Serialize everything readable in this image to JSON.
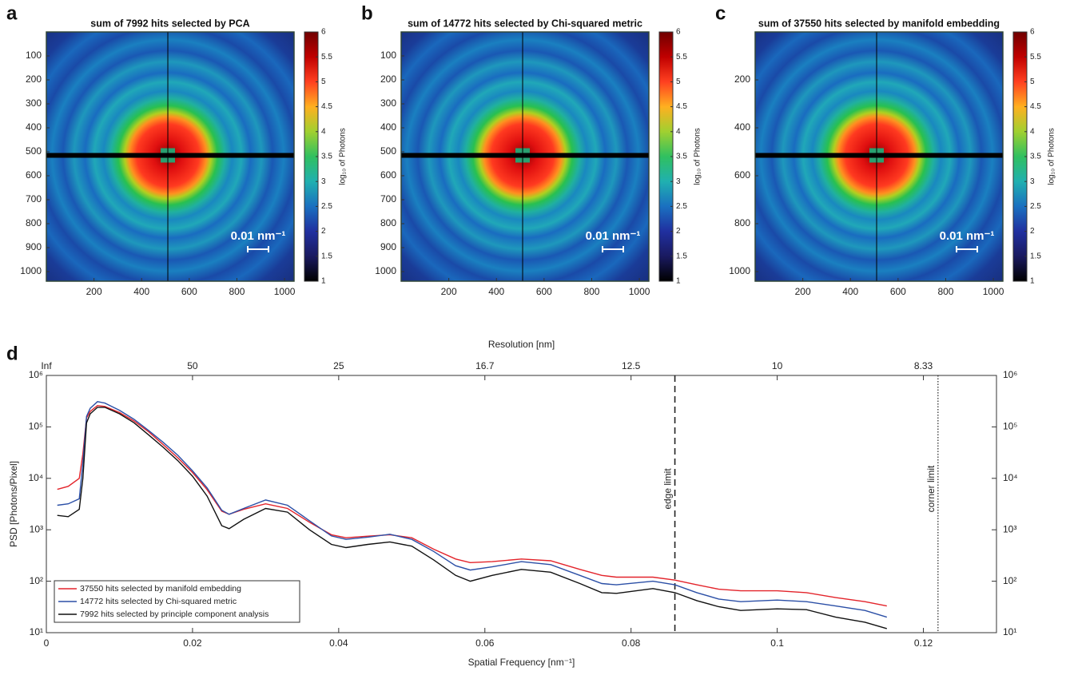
{
  "chart_data": [
    {
      "type": "heatmap",
      "panel": "a",
      "title": "sum of 7992 hits selected by PCA",
      "xlim": [
        0,
        1040
      ],
      "ylim": [
        0,
        1040
      ],
      "xticks": [
        200,
        400,
        600,
        800,
        1000
      ],
      "yticks": [
        100,
        200,
        300,
        400,
        500,
        600,
        700,
        800,
        900,
        1000
      ],
      "colorbar": {
        "label": "log₁₀ of Photons",
        "lim": [
          1,
          6
        ],
        "ticks": [
          1,
          1.5,
          2,
          2.5,
          3,
          3.5,
          4,
          4.5,
          5,
          5.5,
          6
        ]
      },
      "colormap": [
        "#000000",
        "#1a1a60",
        "#2030a0",
        "#1a70c0",
        "#20b0b0",
        "#30c060",
        "#a0d030",
        "#ffb020",
        "#ff4020",
        "#c00000",
        "#700000"
      ],
      "scale_bar_label": "0.01 nm⁻¹"
    },
    {
      "type": "heatmap",
      "panel": "b",
      "title": "sum of 14772 hits selected by Chi-squared metric",
      "xlim": [
        0,
        1040
      ],
      "ylim": [
        0,
        1040
      ],
      "xticks": [
        200,
        400,
        600,
        800,
        1000
      ],
      "yticks": [
        100,
        200,
        300,
        400,
        500,
        600,
        700,
        800,
        900,
        1000
      ],
      "colorbar": {
        "label": "log₁₀ of Photons",
        "lim": [
          1,
          6
        ],
        "ticks": [
          1,
          1.5,
          2,
          2.5,
          3,
          3.5,
          4,
          4.5,
          5,
          5.5,
          6
        ]
      },
      "colormap": [
        "#000000",
        "#1a1a60",
        "#2030a0",
        "#1a70c0",
        "#20b0b0",
        "#30c060",
        "#a0d030",
        "#ffb020",
        "#ff4020",
        "#c00000",
        "#700000"
      ],
      "scale_bar_label": "0.01 nm⁻¹"
    },
    {
      "type": "heatmap",
      "panel": "c",
      "title": "sum of 37550 hits selected by manifold embedding",
      "xlim": [
        0,
        1040
      ],
      "ylim": [
        0,
        1040
      ],
      "xticks": [
        200,
        400,
        600,
        800,
        1000
      ],
      "yticks": [
        200,
        400,
        600,
        800,
        1000
      ],
      "colorbar": {
        "label": "log₁₀ of Photons",
        "lim": [
          1,
          6
        ],
        "ticks": [
          1,
          1.5,
          2,
          2.5,
          3,
          3.5,
          4,
          4.5,
          5,
          5.5,
          6
        ]
      },
      "colormap": [
        "#000000",
        "#1a1a60",
        "#2030a0",
        "#1a70c0",
        "#20b0b0",
        "#30c060",
        "#a0d030",
        "#ffb020",
        "#ff4020",
        "#c00000",
        "#700000"
      ],
      "scale_bar_label": "0.01 nm⁻¹"
    },
    {
      "type": "line",
      "panel": "d",
      "xlabel": "Spatial Frequency [nm⁻¹]",
      "ylabel": "PSD [Photons/Pixel]",
      "x2label": "Resolution [nm]",
      "log_y": true,
      "xlim": [
        0,
        0.13
      ],
      "ylim": [
        10,
        1000000
      ],
      "xticks": [
        0,
        0.02,
        0.04,
        0.06,
        0.08,
        0.1,
        0.12
      ],
      "x2ticks": [
        {
          "value": 0,
          "label": "Inf"
        },
        {
          "value": 0.02,
          "label": "50"
        },
        {
          "value": 0.04,
          "label": "25"
        },
        {
          "value": 0.06,
          "label": "16.7"
        },
        {
          "value": 0.08,
          "label": "12.5"
        },
        {
          "value": 0.1,
          "label": "10"
        },
        {
          "value": 0.12,
          "label": "8.33"
        }
      ],
      "yticks": [
        {
          "value": 10,
          "label": "10¹"
        },
        {
          "value": 100,
          "label": "10²"
        },
        {
          "value": 1000,
          "label": "10³"
        },
        {
          "value": 10000,
          "label": "10⁴"
        },
        {
          "value": 100000,
          "label": "10⁵"
        },
        {
          "value": 1000000,
          "label": "10⁶"
        }
      ],
      "legend": "lower left",
      "x": [
        0.0015,
        0.003,
        0.0045,
        0.005,
        0.0055,
        0.006,
        0.007,
        0.008,
        0.01,
        0.012,
        0.014,
        0.016,
        0.018,
        0.02,
        0.022,
        0.024,
        0.025,
        0.027,
        0.03,
        0.033,
        0.036,
        0.039,
        0.041,
        0.044,
        0.047,
        0.05,
        0.053,
        0.056,
        0.058,
        0.061,
        0.065,
        0.069,
        0.073,
        0.076,
        0.078,
        0.083,
        0.086,
        0.089,
        0.092,
        0.095,
        0.1,
        0.104,
        0.108,
        0.112,
        0.115
      ],
      "series": [
        {
          "name": "37550 hits selected by manifold embedding",
          "color": "#e3242b",
          "values": [
            6100,
            7000,
            10000,
            30000,
            150000,
            200000,
            260000,
            250000,
            190000,
            130000,
            80000,
            45000,
            25000,
            13000,
            6000,
            2300,
            2000,
            2500,
            3200,
            2600,
            1400,
            800,
            700,
            750,
            800,
            700,
            420,
            270,
            230,
            240,
            270,
            250,
            170,
            130,
            120,
            120,
            105,
            85,
            70,
            65,
            65,
            60,
            48,
            40,
            33
          ]
        },
        {
          "name": "14772 hits selected by Chi-squared metric",
          "color": "#2b4fa6",
          "values": [
            3000,
            3200,
            4000,
            20000,
            160000,
            230000,
            310000,
            290000,
            210000,
            140000,
            85000,
            50000,
            28000,
            14000,
            6500,
            2400,
            2000,
            2600,
            3800,
            3000,
            1500,
            760,
            650,
            720,
            820,
            650,
            380,
            200,
            165,
            190,
            240,
            210,
            130,
            90,
            85,
            100,
            85,
            60,
            45,
            40,
            43,
            40,
            33,
            27,
            20
          ]
        },
        {
          "name": "7992 hits selected by principle component analysis",
          "color": "#111111",
          "values": [
            1900,
            1800,
            2500,
            10000,
            120000,
            180000,
            240000,
            240000,
            180000,
            120000,
            70000,
            40000,
            22000,
            11000,
            4500,
            1200,
            1050,
            1600,
            2600,
            2200,
            1000,
            520,
            450,
            520,
            580,
            480,
            260,
            130,
            100,
            130,
            170,
            150,
            90,
            60,
            58,
            72,
            60,
            42,
            32,
            27,
            29,
            28,
            20,
            16,
            12
          ]
        }
      ],
      "vlines": [
        {
          "x": 0.086,
          "label": "edge limit",
          "style": "dashed"
        },
        {
          "x": 0.122,
          "label": "corner limit",
          "style": "dotted"
        }
      ]
    }
  ]
}
